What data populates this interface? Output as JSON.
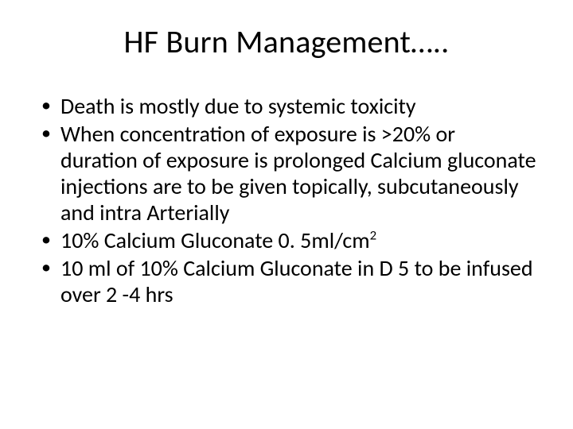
{
  "slide": {
    "title": "HF Burn Management…..",
    "background_color": "#ffffff",
    "text_color": "#000000",
    "title_fontsize": 40,
    "bullet_fontsize": 28,
    "bullets": [
      "Death is mostly due to systemic toxicity",
      "When concentration of exposure is >20% or duration of exposure is prolonged Calcium gluconate injections are to be given topically, subcutaneously and intra Arterially",
      "10% Calcium Gluconate 0. 5ml/cm²",
      "10 ml of 10% Calcium Gluconate in D 5 to be infused over 2 -4 hrs"
    ]
  }
}
